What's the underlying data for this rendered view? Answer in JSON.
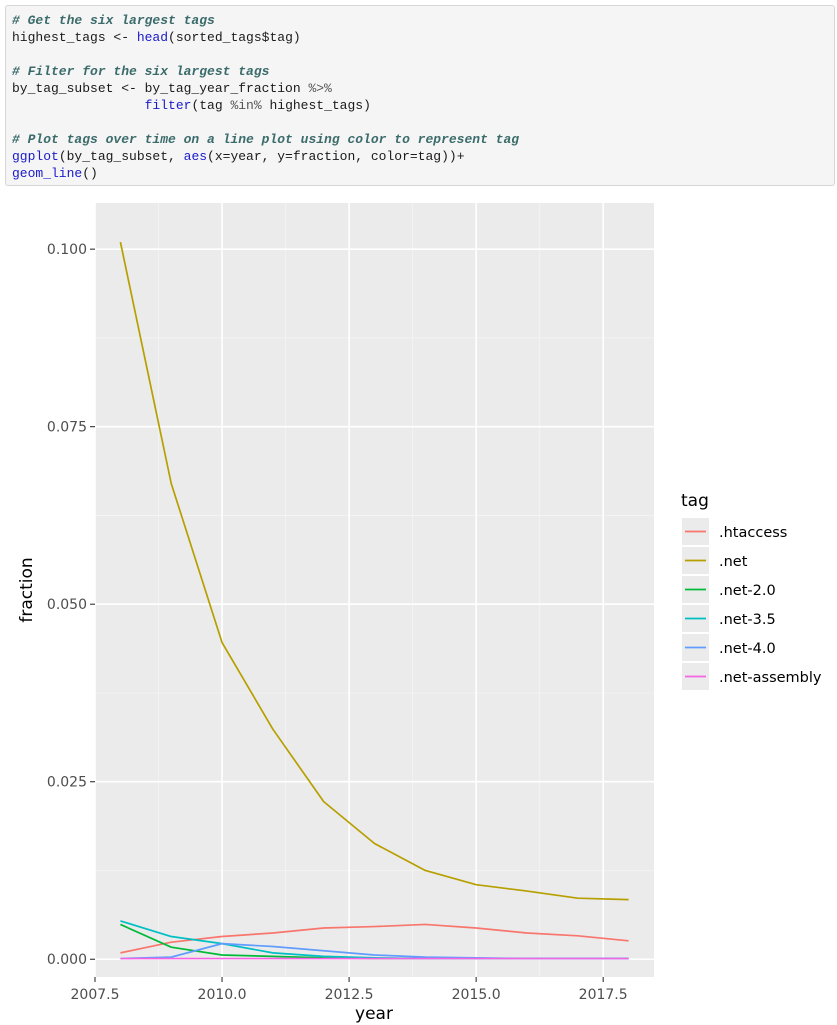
{
  "code": {
    "lines": [
      {
        "segments": [
          {
            "t": "# Get the six largest tags",
            "c": "comment"
          }
        ]
      },
      {
        "segments": [
          {
            "t": "highest_tags <- ",
            "c": "plain"
          },
          {
            "t": "head",
            "c": "func"
          },
          {
            "t": "(sorted_tags$tag)",
            "c": "plain"
          }
        ]
      },
      {
        "segments": [
          {
            "t": "",
            "c": "plain"
          }
        ]
      },
      {
        "segments": [
          {
            "t": "# Filter for the six largest tags",
            "c": "comment"
          }
        ]
      },
      {
        "segments": [
          {
            "t": "by_tag_subset <- by_tag_year_fraction ",
            "c": "plain"
          },
          {
            "t": "%>%",
            "c": "op"
          }
        ]
      },
      {
        "segments": [
          {
            "t": "                 ",
            "c": "plain"
          },
          {
            "t": "filter",
            "c": "func"
          },
          {
            "t": "(tag ",
            "c": "plain"
          },
          {
            "t": "%in%",
            "c": "op"
          },
          {
            "t": " highest_tags)",
            "c": "plain"
          }
        ]
      },
      {
        "segments": [
          {
            "t": "",
            "c": "plain"
          }
        ]
      },
      {
        "segments": [
          {
            "t": "# Plot tags over time on a line plot using color to represent tag",
            "c": "comment"
          }
        ]
      },
      {
        "segments": [
          {
            "t": "ggplot",
            "c": "func"
          },
          {
            "t": "(by_tag_subset, ",
            "c": "plain"
          },
          {
            "t": "aes",
            "c": "func"
          },
          {
            "t": "(x=year, y=fraction, color=tag))+",
            "c": "plain"
          }
        ]
      },
      {
        "segments": [
          {
            "t": "geom_line",
            "c": "func"
          },
          {
            "t": "()",
            "c": "plain"
          }
        ]
      }
    ]
  },
  "chart_data": {
    "type": "line",
    "xlabel": "year",
    "ylabel": "fraction",
    "legend_title": "tag",
    "legend_position": "right",
    "grid": true,
    "xlim": [
      2007.5,
      2018.5
    ],
    "ylim": [
      -0.0025,
      0.1065
    ],
    "x_ticks": [
      2007.5,
      2010.0,
      2012.5,
      2015.0,
      2017.5
    ],
    "x_tick_labels": [
      "2007.5",
      "2010.0",
      "2012.5",
      "2015.0",
      "2017.5"
    ],
    "y_ticks": [
      0,
      0.025,
      0.05,
      0.075,
      0.1
    ],
    "y_tick_labels": [
      "0.000",
      "0.025",
      "0.050",
      "0.075",
      "0.100"
    ],
    "x": [
      2008,
      2009,
      2010,
      2011,
      2012,
      2013,
      2014,
      2015,
      2016,
      2017,
      2018
    ],
    "series": [
      {
        "name": ".htaccess",
        "color": "#F8766D",
        "values": [
          0.0009,
          0.0024,
          0.0032,
          0.0037,
          0.0044,
          0.0046,
          0.0049,
          0.0044,
          0.0037,
          0.0033,
          0.0026
        ]
      },
      {
        "name": ".net",
        "color": "#B79F00",
        "values": [
          0.101,
          0.067,
          0.0446,
          0.0324,
          0.0222,
          0.0163,
          0.0125,
          0.0105,
          0.0096,
          0.0086,
          0.0084
        ]
      },
      {
        "name": ".net-2.0",
        "color": "#00BA38",
        "values": [
          0.0049,
          0.0017,
          0.0006,
          0.0004,
          0.0002,
          0.0001,
          0.0001,
          0.0001,
          0.0001,
          0.0001,
          0.0001
        ]
      },
      {
        "name": ".net-3.5",
        "color": "#00BFC4",
        "values": [
          0.0054,
          0.0032,
          0.0022,
          0.0009,
          0.0004,
          0.0002,
          0.0001,
          0.0001,
          0.0001,
          0.0001,
          0.0001
        ]
      },
      {
        "name": ".net-4.0",
        "color": "#619CFF",
        "values": [
          0.0001,
          0.0003,
          0.0022,
          0.0018,
          0.0012,
          0.0006,
          0.0003,
          0.0002,
          0.0001,
          0.0001,
          0.0001
        ]
      },
      {
        "name": ".net-assembly",
        "color": "#F564E3",
        "values": [
          0.0001,
          0.0001,
          0.0001,
          0.0001,
          0.0001,
          0.0001,
          0.0001,
          0.0001,
          0.0001,
          0.0001,
          0.0001
        ]
      }
    ]
  }
}
